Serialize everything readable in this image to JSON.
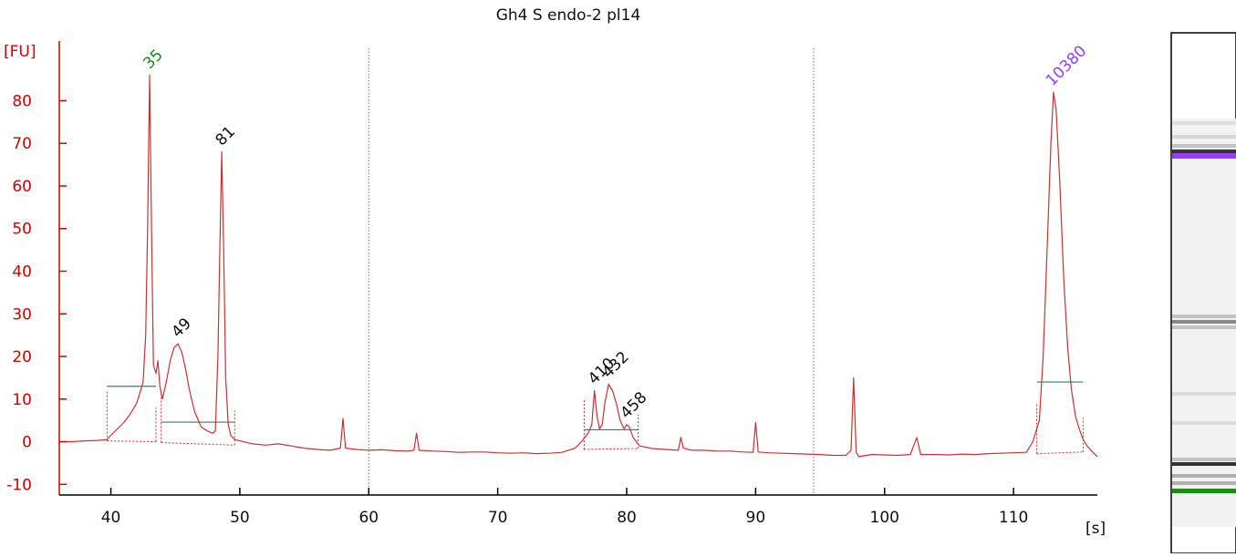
{
  "chart_data": {
    "type": "line",
    "title": "Gh4 S endo-2 pl14",
    "ylabel": "[FU]",
    "xlabel": "[s]",
    "xlim": [
      36,
      116.5
    ],
    "ylim": [
      -12.5,
      94
    ],
    "x_ticks": [
      40,
      50,
      60,
      70,
      80,
      90,
      100,
      110
    ],
    "y_ticks": [
      -10,
      0,
      10,
      20,
      30,
      40,
      50,
      60,
      70,
      80
    ],
    "grid": false,
    "marker_lines": [
      60,
      94.5
    ],
    "colors": {
      "trace": "#c83232",
      "axis": "#cc0000",
      "marker_line": "#6666cc",
      "baseline": "#2f7f6f",
      "lower_marker": "#1a8a1a",
      "upper_marker": "#9a3cff",
      "gel_band": "#333333"
    },
    "peaks": [
      {
        "label": "35",
        "x": 43.0,
        "y": 86,
        "color": "#1a8a1a"
      },
      {
        "label": "49",
        "x": 45.2,
        "y": 23,
        "color": "#111111"
      },
      {
        "label": "81",
        "x": 48.6,
        "y": 68,
        "color": "#111111"
      },
      {
        "label": "410",
        "x": 77.5,
        "y": 12,
        "color": "#111111"
      },
      {
        "label": "432",
        "x": 78.6,
        "y": 13.5,
        "color": "#111111"
      },
      {
        "label": "458",
        "x": 80.0,
        "y": 4,
        "color": "#111111"
      },
      {
        "label": "10380",
        "x": 113.0,
        "y": 82,
        "color": "#9a3cff"
      }
    ],
    "baselines": [
      {
        "x1": 39.7,
        "x2": 43.5,
        "y": 13.0
      },
      {
        "x1": 43.9,
        "x2": 49.6,
        "y": 4.6
      },
      {
        "x1": 76.7,
        "x2": 80.9,
        "y": 2.8
      },
      {
        "x1": 111.8,
        "x2": 115.4,
        "y": 14.0
      }
    ],
    "peak_bounds": [
      {
        "x1": 39.7,
        "x2": 43.5,
        "y1": 0.2,
        "y2": 0.0
      },
      {
        "x1": 43.9,
        "x2": 49.6,
        "y1": -0.2,
        "y2": -0.8
      },
      {
        "x1": 76.7,
        "x2": 80.9,
        "y1": -1.8,
        "y2": -1.6
      },
      {
        "x1": 111.8,
        "x2": 115.4,
        "y1": -2.8,
        "y2": -2.4
      }
    ],
    "series": [
      {
        "x": [
          36.0,
          37.0,
          38.0,
          39.0,
          39.7,
          40.0,
          40.5,
          41.0,
          41.5,
          42.0,
          42.3,
          42.5,
          42.7,
          42.85,
          43.0,
          43.15,
          43.3,
          43.5,
          43.65,
          43.8,
          44.0,
          44.3,
          44.6,
          44.9,
          45.2,
          45.5,
          45.8,
          46.1,
          46.5,
          47.0,
          47.5,
          47.9,
          48.1,
          48.3,
          48.45,
          48.6,
          48.75,
          48.9,
          49.1,
          49.3,
          49.6,
          50.0,
          51.0,
          52.0,
          53.0,
          54.0,
          55.0,
          56.0,
          57.0,
          57.8,
          58.0,
          58.2,
          59.0,
          60.0,
          61.0,
          62.0,
          63.0,
          63.5,
          63.7,
          63.9,
          65.0,
          66.0,
          67.0,
          68.0,
          69.0,
          70.0,
          71.0,
          72.0,
          73.0,
          74.0,
          75.0,
          76.0,
          76.5,
          77.0,
          77.3,
          77.5,
          77.7,
          77.9,
          78.1,
          78.3,
          78.6,
          78.9,
          79.2,
          79.5,
          79.8,
          80.0,
          80.2,
          80.5,
          81.0,
          82.0,
          83.0,
          84.0,
          84.2,
          84.4,
          85.0,
          86.0,
          87.0,
          88.0,
          89.0,
          89.8,
          90.0,
          90.2,
          91.0,
          92.0,
          93.0,
          94.0,
          95.0,
          96.0,
          97.0,
          97.4,
          97.6,
          97.8,
          98.0,
          99.0,
          100.0,
          101.0,
          102.0,
          102.5,
          102.8,
          103.0,
          104.0,
          105.0,
          106.0,
          107.0,
          108.0,
          109.0,
          110.0,
          111.0,
          111.5,
          112.0,
          112.3,
          112.6,
          112.9,
          113.1,
          113.3,
          113.6,
          113.9,
          114.2,
          114.5,
          114.8,
          115.1,
          115.4,
          115.7,
          116.0,
          116.5
        ],
        "y": [
          0.0,
          0.0,
          0.2,
          0.3,
          0.5,
          1.5,
          3.0,
          4.5,
          6.5,
          9.0,
          12.0,
          14.0,
          25.0,
          50.0,
          86.0,
          50.0,
          18.0,
          16.0,
          19.0,
          13.0,
          10.0,
          14.0,
          19.0,
          22.0,
          23.0,
          21.0,
          17.0,
          12.0,
          7.0,
          3.5,
          2.5,
          2.0,
          2.5,
          20.0,
          45.0,
          68.0,
          45.0,
          15.0,
          4.0,
          1.5,
          0.5,
          0.2,
          -0.5,
          -0.8,
          -0.5,
          -1.0,
          -1.5,
          -1.8,
          -2.0,
          -1.5,
          5.5,
          -1.5,
          -1.8,
          -2.0,
          -1.9,
          -2.1,
          -2.2,
          -2.0,
          2.0,
          -2.0,
          -2.2,
          -2.3,
          -2.5,
          -2.4,
          -2.4,
          -2.6,
          -2.7,
          -2.6,
          -2.8,
          -2.7,
          -2.5,
          -1.5,
          0.0,
          2.0,
          4.0,
          12.0,
          6.0,
          3.0,
          4.0,
          9.0,
          13.5,
          12.0,
          9.0,
          5.0,
          3.0,
          4.0,
          3.5,
          1.0,
          -1.0,
          -1.6,
          -1.8,
          -2.0,
          1.0,
          -1.5,
          -2.0,
          -2.0,
          -2.2,
          -2.2,
          -2.4,
          -2.5,
          4.5,
          -2.4,
          -2.6,
          -2.7,
          -2.8,
          -2.9,
          -3.0,
          -3.2,
          -3.2,
          -2.0,
          15.0,
          -2.5,
          -3.5,
          -3.0,
          -3.1,
          -3.2,
          -3.0,
          1.0,
          -3.0,
          -3.0,
          -3.0,
          -3.1,
          -2.9,
          -3.0,
          -2.8,
          -2.7,
          -2.6,
          -2.5,
          0.0,
          5.0,
          20.0,
          45.0,
          70.0,
          82.0,
          78.0,
          60.0,
          38.0,
          22.0,
          12.0,
          6.0,
          3.0,
          0.5,
          -1.0,
          -2.0,
          -3.5
        ]
      }
    ]
  },
  "gel": {
    "bands": [
      {
        "name": "upper-marker",
        "color": "#9a3cff"
      },
      {
        "name": "lower-marker",
        "color": "#1a8a1a"
      }
    ]
  }
}
